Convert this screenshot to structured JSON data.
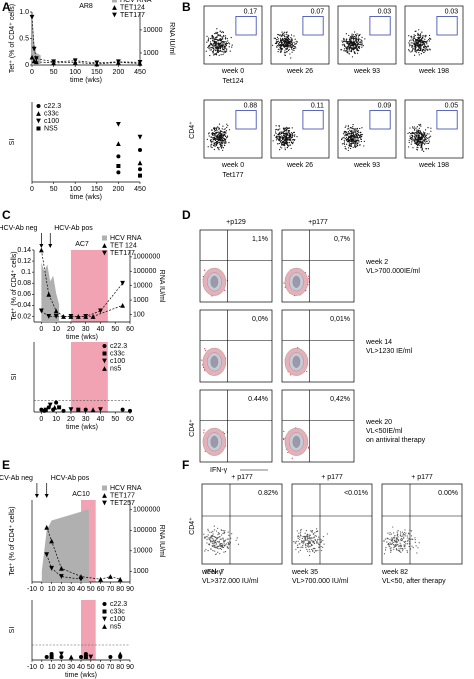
{
  "panel_labels": [
    "A",
    "B",
    "C",
    "D",
    "E",
    "F"
  ],
  "chart_data": [
    {
      "type": "line",
      "title": "AR8",
      "xlabel": "time (wks)",
      "ylabel": "Tet⁺ (% of CD4⁺ cells)",
      "y2label": "RNA IU/ml",
      "x_break": true,
      "xlim": [
        0,
        450
      ],
      "xticks": [
        0,
        50,
        100,
        150,
        200,
        450
      ],
      "ylim": [
        0,
        1
      ],
      "yticks": [
        0,
        0.5,
        {
          "value": 1,
          "label": "1.0"
        }
      ],
      "y2log": true,
      "y2lim": [
        300,
        60000
      ],
      "y2ticks": [
        1000,
        10000
      ],
      "legend_loc": "upper right",
      "series": [
        {
          "name": "HCV RNA",
          "marker": "area",
          "color": "#b0b0b0",
          "axis": "y2",
          "x": [
            0,
            2,
            5,
            10,
            20
          ],
          "values": [
            50000,
            20000,
            3000,
            1000,
            800
          ]
        },
        {
          "name": "TET124",
          "marker": "tri",
          "color": "#000000",
          "line": true,
          "x": [
            0,
            5,
            10,
            50,
            100,
            150,
            200,
            450
          ],
          "values": [
            0.15,
            0.08,
            0.06,
            0.04,
            0.05,
            0.02,
            0.05,
            0.03
          ]
        },
        {
          "name": "TET177",
          "marker": "itri",
          "color": "#000000",
          "line": true,
          "x": [
            0,
            5,
            10,
            50,
            100,
            150,
            200,
            450
          ],
          "values": [
            0.9,
            0.3,
            0.12,
            0.06,
            0.08,
            0.04,
            0.06,
            0.05
          ]
        }
      ]
    },
    {
      "type": "scatter",
      "xlabel": "time (wks)",
      "ylabel": "SI",
      "x_break": true,
      "xlim": [
        0,
        450
      ],
      "xticks": [
        0,
        50,
        100,
        150,
        200,
        450
      ],
      "ylim": [
        0,
        25
      ],
      "legend_loc": "upper left",
      "series": [
        {
          "name": "c22.3",
          "marker": "circle",
          "color": "#000000",
          "x": [
            200,
            200,
            450,
            450
          ],
          "values": [
            8,
            3,
            10,
            4
          ]
        },
        {
          "name": "c33c",
          "marker": "tri",
          "color": "#000000",
          "x": [
            200,
            450
          ],
          "values": [
            12,
            6
          ]
        },
        {
          "name": "c100",
          "marker": "itri",
          "color": "#000000",
          "x": [
            200,
            450
          ],
          "values": [
            18,
            14
          ]
        },
        {
          "name": "NS5",
          "marker": "square",
          "color": "#000000",
          "x": [
            200,
            450
          ],
          "values": [
            5,
            2
          ]
        }
      ]
    },
    {
      "type": "line",
      "title": "AC7",
      "xlabel": "time (wks)",
      "ylabel": "Tet⁺ (% of CD4⁺ cells)",
      "y2label": "RNA IU/ml",
      "xlim": [
        -5,
        60
      ],
      "xticks": [
        0,
        10,
        20,
        30,
        40,
        50,
        60
      ],
      "ylim": [
        0.01,
        0.14
      ],
      "yticks": [
        0.02,
        0.04,
        0.06,
        0.08,
        0.1,
        0.12,
        0.14
      ],
      "y2log": true,
      "y2lim": [
        30,
        3000000
      ],
      "y2ticks": [
        100,
        1000,
        10000,
        100000,
        1000000
      ],
      "legend_loc": "upper right",
      "shade": [
        20,
        45
      ],
      "annotations": [
        {
          "text": "HCV-Ab neg",
          "x": 0
        },
        {
          "text": "HCV-Ab pos",
          "x": 6
        }
      ],
      "series": [
        {
          "name": "HCV RNA",
          "marker": "area",
          "color": "#b0b0b0",
          "axis": "y2",
          "x": [
            0,
            2,
            4,
            6,
            8,
            10,
            12
          ],
          "values": [
            400000,
            100000,
            300000,
            20000,
            50000,
            3000,
            500
          ]
        },
        {
          "name": "TET 124",
          "marker": "tri",
          "color": "#000000",
          "line": true,
          "x": [
            0,
            5,
            10,
            15,
            20,
            25,
            30,
            35,
            55
          ],
          "values": [
            0.14,
            0.06,
            0.03,
            0.02,
            0.02,
            0.02,
            0.02,
            0.02,
            0.04
          ]
        },
        {
          "name": "TET177",
          "marker": "itri",
          "color": "#000000",
          "line": true,
          "x": [
            0,
            5,
            10,
            20,
            30,
            40,
            55
          ],
          "values": [
            0.03,
            0.02,
            0.02,
            0.02,
            0.02,
            0.03,
            0.08
          ]
        }
      ]
    },
    {
      "type": "scatter",
      "xlabel": "time (wks)",
      "ylabel": "SI",
      "xlim": [
        -5,
        60
      ],
      "xticks": [
        0,
        10,
        20,
        30,
        40,
        50,
        60
      ],
      "ylim": [
        0,
        30
      ],
      "threshold": 5,
      "shade": [
        20,
        45
      ],
      "legend_loc": "upper right",
      "series": [
        {
          "name": "c22.3",
          "marker": "circle",
          "color": "#000000",
          "x": [
            0,
            2,
            5,
            8,
            10,
            15,
            30,
            55,
            60
          ],
          "values": [
            1,
            0.5,
            2,
            1,
            4,
            0.5,
            1,
            1,
            0.5
          ]
        },
        {
          "name": "c33c",
          "marker": "square",
          "color": "#000000",
          "x": [
            3,
            12,
            25
          ],
          "values": [
            1,
            2,
            1
          ]
        },
        {
          "name": "c100",
          "marker": "itri",
          "color": "#000000",
          "x": [
            6,
            20,
            40
          ],
          "values": [
            3,
            1,
            1
          ]
        },
        {
          "name": "ns5",
          "marker": "tri",
          "color": "#000000",
          "x": [
            9,
            35
          ],
          "values": [
            2,
            1
          ]
        }
      ]
    },
    {
      "type": "line",
      "title": "AC10",
      "ylabel": "Tet⁺ (% of CD4⁺ cells)",
      "y2label": "RNA IU/ml",
      "xlim": [
        -10,
        90
      ],
      "xticks": [
        -10,
        0,
        10,
        20,
        30,
        40,
        50,
        60,
        70,
        80,
        90
      ],
      "ylim": [
        0,
        0.3
      ],
      "y2log": true,
      "y2lim": [
        300,
        3000000
      ],
      "y2ticks": [
        1000,
        10000,
        100000,
        1000000
      ],
      "legend_loc": "upper right",
      "shade": [
        40,
        55
      ],
      "annotations": [
        {
          "text": "HCV-Ab neg",
          "x": -5
        },
        {
          "text": "HCV-Ab pos",
          "x": 5
        }
      ],
      "series": [
        {
          "name": "HCV RNA",
          "marker": "area",
          "color": "#b0b0b0",
          "axis": "y2",
          "x": [
            0,
            5,
            10,
            40,
            45,
            48
          ],
          "values": [
            1000,
            100000,
            300000,
            800000,
            1000000,
            1000000
          ]
        },
        {
          "name": "TET177",
          "marker": "tri",
          "color": "#000000",
          "line": true,
          "x": [
            5,
            10,
            20,
            40,
            60,
            70,
            80
          ],
          "values": [
            0.2,
            0.15,
            0.05,
            0.02,
            0.01,
            0.02,
            0.01
          ]
        },
        {
          "name": "TET257",
          "marker": "itri",
          "color": "#000000",
          "line": true,
          "x": [
            5,
            10,
            20,
            40
          ],
          "values": [
            0.1,
            0.05,
            0.02,
            0.01
          ]
        }
      ]
    },
    {
      "type": "scatter",
      "xlabel": "time (wks)",
      "ylabel": "SI",
      "xlim": [
        -10,
        90
      ],
      "xticks": [
        -10,
        0,
        10,
        20,
        30,
        40,
        50,
        60,
        70,
        80,
        90
      ],
      "ylim": [
        0,
        20
      ],
      "threshold": 5,
      "shade": [
        40,
        55
      ],
      "legend_loc": "upper right",
      "series": [
        {
          "name": "c22.3",
          "marker": "circle",
          "color": "#000000",
          "x": [
            5,
            10,
            20,
            40,
            45,
            70,
            80
          ],
          "values": [
            1,
            2,
            1,
            1,
            2,
            1,
            1
          ]
        },
        {
          "name": "c33c",
          "marker": "square",
          "color": "#000000",
          "x": [
            10,
            45
          ],
          "values": [
            1,
            1
          ]
        },
        {
          "name": "c100",
          "marker": "itri",
          "color": "#000000",
          "x": [
            20,
            50
          ],
          "values": [
            2,
            1
          ]
        },
        {
          "name": "ns5",
          "marker": "tri",
          "color": "#000000",
          "x": [
            30,
            80
          ],
          "values": [
            1,
            2
          ]
        }
      ]
    }
  ],
  "flow_B": {
    "ylabel": "CD4⁺",
    "rows": [
      {
        "percents": [
          "0.17",
          "0.07",
          "0.03",
          "0.03"
        ],
        "weeks": [
          "week 0",
          "week 26",
          "week 93",
          "week 198"
        ],
        "marker": "Tet124"
      },
      {
        "percents": [
          "0.88",
          "0.11",
          "0.09",
          "0.05"
        ],
        "weeks": [
          "week 0",
          "week 26",
          "week 93",
          "week 198"
        ],
        "marker": "Tet177"
      }
    ]
  },
  "flow_D": {
    "columns": [
      "+p129",
      "+p177"
    ],
    "ylabel": "CD4⁺",
    "xlabel": "IFN-γ",
    "rows": [
      {
        "percents": [
          "1,1%",
          "0,7%"
        ],
        "note": [
          "week 2",
          "VL>700.000IE/ml"
        ]
      },
      {
        "percents": [
          "0,0%",
          "0,01%"
        ],
        "note": [
          "week 14",
          "VL>1230 IE/ml"
        ]
      },
      {
        "percents": [
          "0.44%",
          "0,42%"
        ],
        "note": [
          "week 20",
          "VL<50IE/ml",
          "on antiviral therapy"
        ]
      }
    ]
  },
  "flow_F": {
    "ylabel": "CD4⁺",
    "xlabel": "IFN-γ",
    "plots": [
      {
        "title": "+ p177",
        "percent": "0.82%",
        "note": [
          "week 7",
          "VL>372.000 IU/ml"
        ]
      },
      {
        "title": "+ p177",
        "percent": "<0.01%",
        "note": [
          "week 35",
          "VL>700.000 IU/ml"
        ]
      },
      {
        "title": "+ p177",
        "percent": "0.00%",
        "note": [
          "week 82",
          "VL<50, after therapy"
        ]
      }
    ]
  }
}
